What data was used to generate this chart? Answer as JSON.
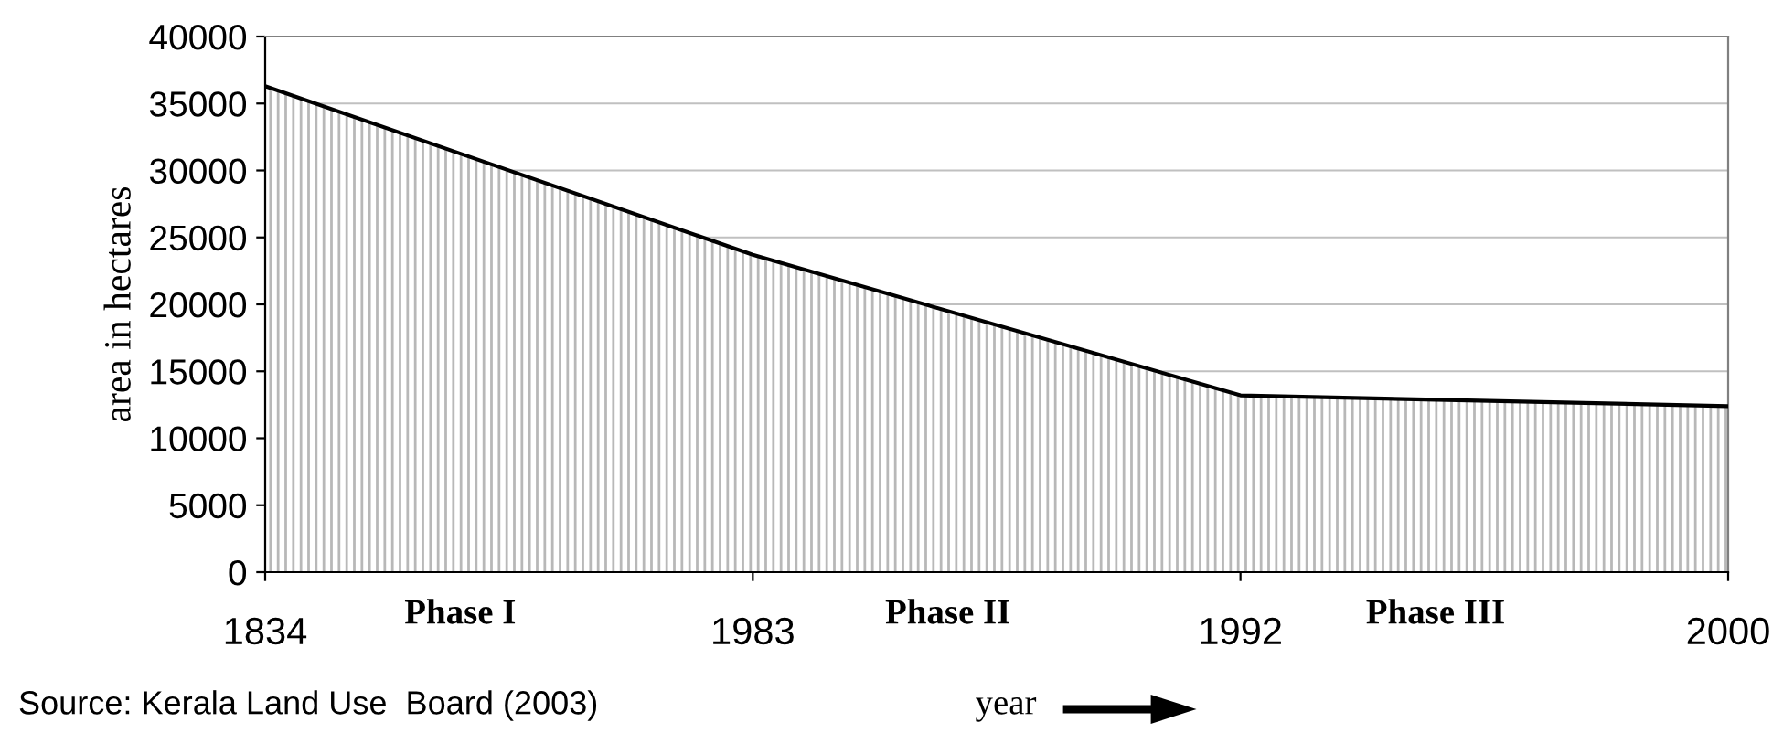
{
  "chart_data": {
    "type": "area",
    "categories": [
      "1834",
      "1983",
      "1992",
      "2000"
    ],
    "series": [
      {
        "color": "#b8b8b8",
        "values": [
          36300,
          23700,
          13200,
          12400
        ]
      }
    ],
    "ylabel": "area in hectares",
    "xlabel": "year",
    "ylim": [
      0,
      40000
    ],
    "yticks": [
      0,
      5000,
      10000,
      15000,
      20000,
      25000,
      30000,
      35000,
      40000
    ],
    "grid": "y",
    "annotations": [
      "Phase I",
      "Phase II",
      "Phase III",
      "Source: Kerala Land Use  Board (2003)"
    ]
  }
}
